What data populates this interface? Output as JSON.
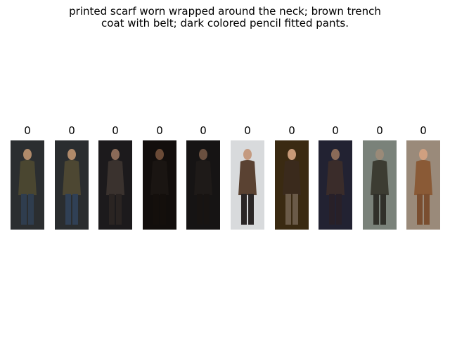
{
  "title": {
    "line1": "printed scarf worn wrapped around the neck; brown trench",
    "line2": "coat with belt; dark colored pencil fitted pants."
  },
  "gallery": {
    "items": [
      {
        "score": "0",
        "bg": "#2b2e30",
        "coat": "#4a4630",
        "pants": "#2f3d4e",
        "skin": "#b08a6a"
      },
      {
        "score": "0",
        "bg": "#2a2d2f",
        "coat": "#4d4732",
        "pants": "#304055",
        "skin": "#b08a6a"
      },
      {
        "score": "0",
        "bg": "#1c1a1c",
        "coat": "#3a322e",
        "pants": "#2a2422",
        "skin": "#8a6a58"
      },
      {
        "score": "0",
        "bg": "#120e0c",
        "coat": "#1a1512",
        "pants": "#140f0c",
        "skin": "#6a4a36"
      },
      {
        "score": "0",
        "bg": "#161414",
        "coat": "#1e1a18",
        "pants": "#181412",
        "skin": "#6a5040"
      },
      {
        "score": "0",
        "bg": "#d8dadc",
        "coat": "#5a4232",
        "pants": "#2a2626",
        "skin": "#c49a80"
      },
      {
        "score": "0",
        "bg": "#3a2a12",
        "coat": "#3a2a1c",
        "pants": "#6a5a48",
        "skin": "#c89a78"
      },
      {
        "score": "0",
        "bg": "#222232",
        "coat": "#3a2c2a",
        "pants": "#282028",
        "skin": "#8a6a58"
      },
      {
        "score": "0",
        "bg": "#7a827a",
        "coat": "#3c3c32",
        "pants": "#30302a",
        "skin": "#9a8a78"
      },
      {
        "score": "0",
        "bg": "#9a8a7a",
        "coat": "#8a5a36",
        "pants": "#7a4e30",
        "skin": "#d0a080"
      }
    ]
  }
}
